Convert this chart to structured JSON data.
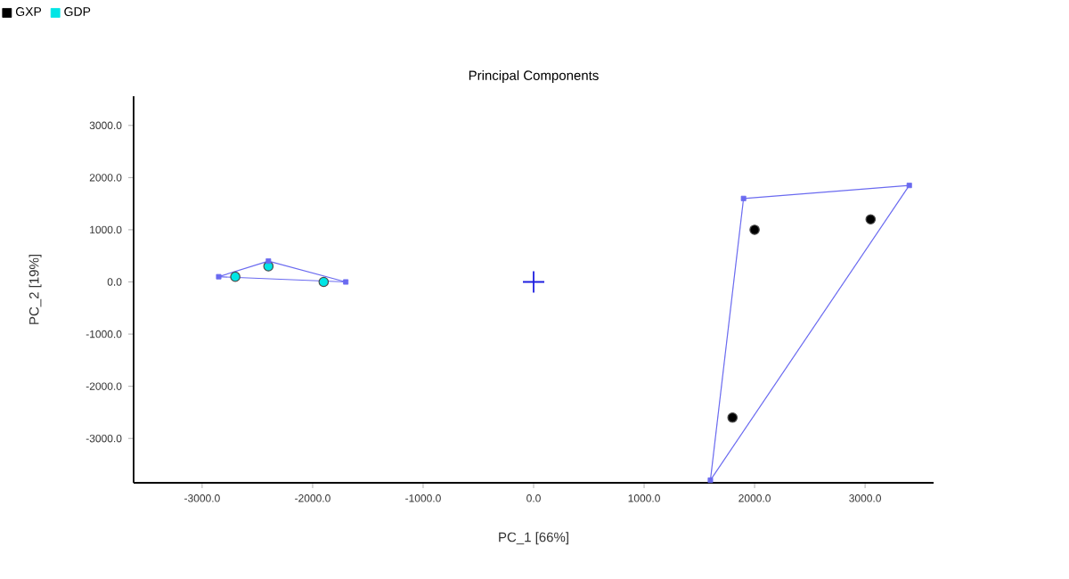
{
  "chart_data": {
    "type": "scatter",
    "title": "Principal Components",
    "xlabel": "PC_1 [66%]",
    "ylabel": "PC_2 [19%]",
    "xlim": [
      -3620,
      3620
    ],
    "ylim": [
      -3850,
      3560
    ],
    "xticks": [
      {
        "value": -3000,
        "label": "-3000.0"
      },
      {
        "value": -2000,
        "label": "-2000.0"
      },
      {
        "value": -1000,
        "label": "-1000.0"
      },
      {
        "value": 0,
        "label": "0.0"
      },
      {
        "value": 1000,
        "label": "1000.0"
      },
      {
        "value": 2000,
        "label": "2000.0"
      },
      {
        "value": 3000,
        "label": "3000.0"
      }
    ],
    "yticks": [
      {
        "value": -3000,
        "label": "-3000.0"
      },
      {
        "value": -2000,
        "label": "-2000.0"
      },
      {
        "value": -1000,
        "label": "-1000.0"
      },
      {
        "value": 0,
        "label": "0.0"
      },
      {
        "value": 1000,
        "label": "1000.0"
      },
      {
        "value": 2000,
        "label": "2000.0"
      },
      {
        "value": 3000,
        "label": "3000.0"
      }
    ],
    "legend": "top left",
    "marker": "circle",
    "series": [
      {
        "name": "GXP",
        "color": "#000000",
        "x": [
          2000,
          3050,
          1800
        ],
        "values": [
          1000,
          1200,
          -2600
        ]
      },
      {
        "name": "GDP",
        "color": "#00e5e5",
        "x": [
          -2700,
          -2400,
          -1900
        ],
        "values": [
          100,
          300,
          0
        ]
      },
      {
        "type": "line",
        "color": "#6a6af0",
        "marker": "none",
        "x": [
          -2850,
          -2400
        ],
        "values": [
          100,
          400
        ]
      },
      {
        "type": "line",
        "color": "#6a6af0",
        "marker": "none",
        "x": [
          -2400,
          -1700
        ],
        "values": [
          400,
          0
        ]
      },
      {
        "type": "line",
        "color": "#6a6af0",
        "marker": "none",
        "x": [
          -2850,
          -1700
        ],
        "values": [
          100,
          0
        ]
      },
      {
        "type": "line",
        "color": "#6a6af0",
        "marker": "none",
        "x": [
          1900,
          3400
        ],
        "values": [
          1600,
          1850
        ]
      },
      {
        "type": "line",
        "color": "#6a6af0",
        "marker": "none",
        "x": [
          1600,
          1900
        ],
        "values": [
          -3800,
          1600
        ]
      },
      {
        "type": "line",
        "color": "#6a6af0",
        "marker": "none",
        "x": [
          1600,
          3400
        ],
        "values": [
          -3800,
          1850
        ]
      },
      {
        "color": "#6a6af0",
        "marker": "square",
        "x": [
          -2850,
          -2400,
          -1700
        ],
        "values": [
          100,
          400,
          0
        ]
      },
      {
        "color": "#6a6af0",
        "marker": "square",
        "x": [
          1900,
          3400,
          1600
        ],
        "values": [
          1600,
          1850,
          -3800
        ]
      },
      {
        "color": "#1f1fe0",
        "marker": "cross",
        "x": [
          0
        ],
        "values": [
          0
        ]
      }
    ]
  }
}
